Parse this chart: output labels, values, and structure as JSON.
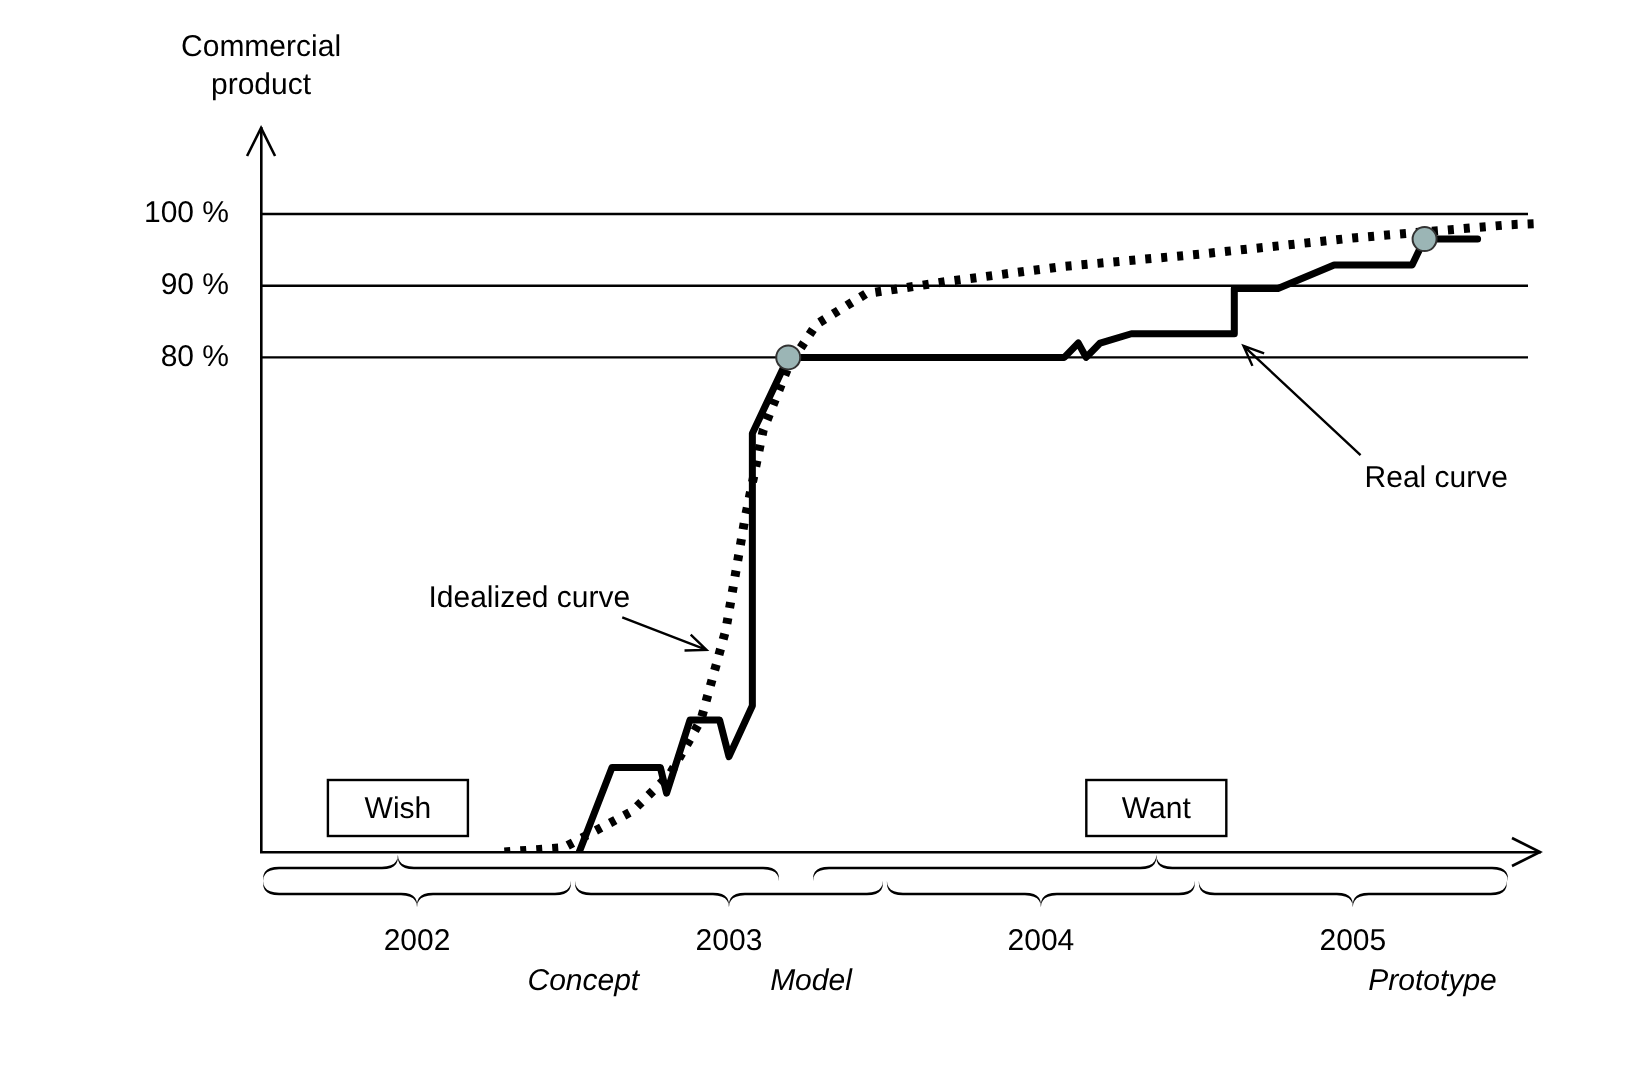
{
  "chart_data": {
    "type": "line",
    "ylabel": "Commercial product",
    "xlim": [
      2002,
      2006.1
    ],
    "xticks": [
      {
        "value": 2002.5,
        "label": "2002"
      },
      {
        "value": 2003.5,
        "label": "2003"
      },
      {
        "value": 2004.5,
        "label": "2004"
      },
      {
        "value": 2005.5,
        "label": "2005"
      }
    ],
    "ylim": [
      11,
      112
    ],
    "yticks": [
      {
        "value": 80,
        "label": "80 %"
      },
      {
        "value": 90,
        "label": "90 %"
      },
      {
        "value": 100,
        "label": "100 %"
      }
    ],
    "grid": false,
    "ref_lines": [
      {
        "axis": "y",
        "value": 80
      },
      {
        "axis": "y",
        "value": 90
      },
      {
        "axis": "y",
        "value": 100
      }
    ],
    "series": [
      {
        "color": "#000000",
        "line_style": "solid",
        "marker": "none",
        "x": [
          2003.02,
          2003.125,
          2003.28,
          2003.3,
          2003.375,
          2003.47,
          2003.5,
          2003.575,
          2003.575,
          2003.69,
          2004.575,
          2004.62,
          2004.645,
          2004.69,
          2004.79,
          2005.12,
          2005.12,
          2005.26,
          2005.44,
          2005.69,
          2005.73,
          2005.9
        ],
        "values": [
          11,
          22.8,
          22.8,
          19.2,
          29.4,
          29.4,
          24.3,
          31.4,
          69.4,
          80,
          80,
          82,
          80,
          82,
          83.3,
          83.3,
          89.6,
          89.6,
          92.9,
          92.9,
          96.5,
          96.5
        ]
      },
      {
        "color": "#000000",
        "line_style": "dotted",
        "marker": "none",
        "x": [
          2002.78,
          2002.97,
          2003.06,
          2003.19,
          2003.31,
          2003.41,
          2003.49,
          2003.55,
          2003.61,
          2003.69,
          2003.78,
          2003.94,
          2004.2,
          2004.575,
          2005.01,
          2005.51,
          2006.0,
          2006.1
        ],
        "values": [
          11,
          11.6,
          13.7,
          16.7,
          21.8,
          29.4,
          42,
          57.2,
          69.9,
          78.7,
          84.6,
          88.9,
          90.6,
          92.7,
          94.4,
          96.7,
          98.5,
          98.7
        ]
      },
      {
        "type": "scatter",
        "color": "#9bb5b5",
        "marker": "circle",
        "x": [
          2003.69,
          2005.73
        ],
        "values": [
          80,
          96.5
        ]
      }
    ],
    "annotations": [
      "Wish",
      "Want",
      "Concept",
      "Model",
      "Prototype",
      {
        "text": "Idealized curve",
        "x": 2003.44,
        "y": 39
      },
      {
        "text": "Real curve",
        "x": 2005.14,
        "y": 82
      }
    ]
  }
}
